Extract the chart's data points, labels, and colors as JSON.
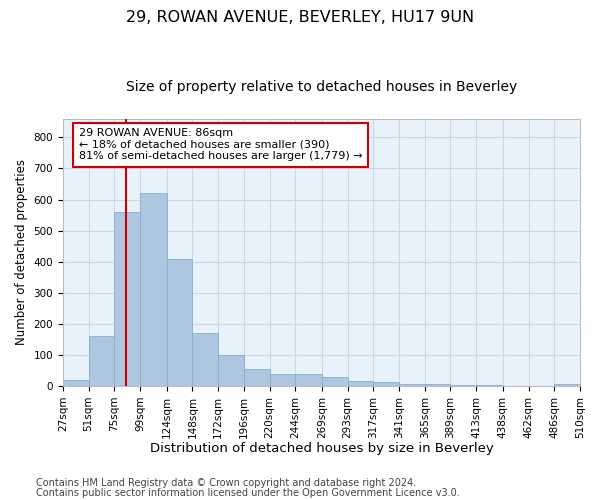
{
  "title1": "29, ROWAN AVENUE, BEVERLEY, HU17 9UN",
  "title2": "Size of property relative to detached houses in Beverley",
  "xlabel": "Distribution of detached houses by size in Beverley",
  "ylabel": "Number of detached properties",
  "footer1": "Contains HM Land Registry data © Crown copyright and database right 2024.",
  "footer2": "Contains public sector information licensed under the Open Government Licence v3.0.",
  "bar_edges": [
    27,
    51,
    75,
    99,
    124,
    148,
    172,
    196,
    220,
    244,
    269,
    293,
    317,
    341,
    365,
    389,
    413,
    438,
    462,
    486,
    510
  ],
  "bar_heights": [
    20,
    160,
    560,
    620,
    410,
    170,
    100,
    55,
    40,
    40,
    30,
    15,
    12,
    8,
    5,
    2,
    2,
    1,
    0,
    5
  ],
  "bar_color": "#aec6df",
  "bar_edgecolor": "#85afd4",
  "grid_color": "#c5d8ec",
  "background_color": "#e8f2fb",
  "vline_x": 86,
  "vline_color": "#cc0000",
  "annotation_text": "29 ROWAN AVENUE: 86sqm\n← 18% of detached houses are smaller (390)\n81% of semi-detached houses are larger (1,779) →",
  "annotation_box_edgecolor": "#cc0000",
  "ylim": [
    0,
    860
  ],
  "yticks": [
    0,
    100,
    200,
    300,
    400,
    500,
    600,
    700,
    800
  ],
  "title1_fontsize": 11.5,
  "title2_fontsize": 10,
  "xlabel_fontsize": 9.5,
  "ylabel_fontsize": 8.5,
  "tick_fontsize": 7.5,
  "annotation_fontsize": 8,
  "footer_fontsize": 7
}
